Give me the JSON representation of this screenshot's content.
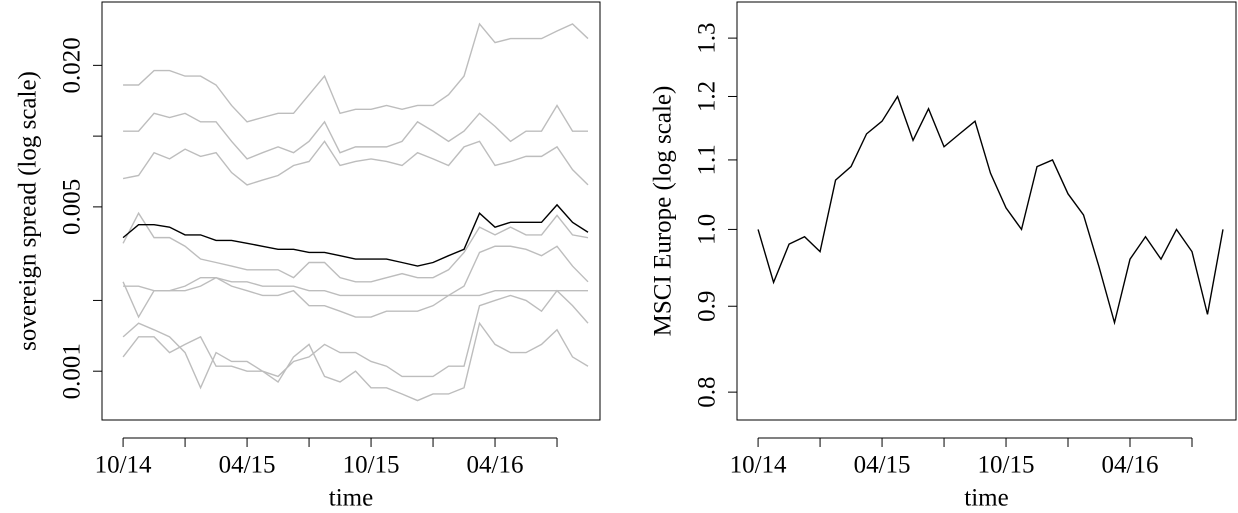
{
  "chart_data": [
    {
      "type": "line",
      "ylabel": "sovereign spread (log scale)",
      "xlabel": "time",
      "log_y": true,
      "x": [
        0,
        0.75,
        1.5,
        2.25,
        3,
        3.75,
        4.5,
        5.25,
        6,
        6.75,
        7.5,
        8.25,
        9,
        9.75,
        10.5,
        11.25,
        12,
        12.75,
        13.5,
        14.25,
        15,
        15.75,
        16.5,
        17.25,
        18,
        18.75,
        19.5,
        20.25,
        21,
        21.75,
        22.5
      ],
      "xlim": [
        -1.02,
        23.08
      ],
      "xticks": [
        {
          "value": 0,
          "label": "10/14"
        },
        {
          "value": 6,
          "label": "04/15"
        },
        {
          "value": 12,
          "label": "10/15"
        },
        {
          "value": 18,
          "label": "04/16"
        }
      ],
      "xminor": [
        3,
        9,
        15,
        21
      ],
      "ylim": [
        0.00062,
        0.0372
      ],
      "yticks": [
        0.001,
        0.005,
        {
          "value": 0.02,
          "label": "0.020"
        }
      ],
      "yminor": [
        0.002,
        0.01
      ],
      "series": [
        {
          "color": "#bdbdbd",
          "values": [
            0.0165,
            0.0165,
            0.019,
            0.019,
            0.018,
            0.018,
            0.0165,
            0.0135,
            0.0115,
            0.012,
            0.0125,
            0.0125,
            0.015,
            0.018,
            0.0125,
            0.013,
            0.013,
            0.0135,
            0.013,
            0.0135,
            0.0135,
            0.015,
            0.018,
            0.03,
            0.025,
            0.026,
            0.026,
            0.026,
            0.028,
            0.03,
            0.026
          ]
        },
        {
          "color": "#bdbdbd",
          "values": [
            0.0105,
            0.0105,
            0.0125,
            0.012,
            0.0125,
            0.0115,
            0.0115,
            0.0095,
            0.008,
            0.0085,
            0.009,
            0.0085,
            0.0095,
            0.0115,
            0.0085,
            0.009,
            0.009,
            0.009,
            0.0095,
            0.0115,
            0.0105,
            0.0095,
            0.0105,
            0.0125,
            0.011,
            0.0095,
            0.0105,
            0.0105,
            0.0135,
            0.0105,
            0.0105
          ]
        },
        {
          "color": "#bdbdbd",
          "values": [
            0.0066,
            0.0068,
            0.0085,
            0.008,
            0.0088,
            0.0082,
            0.0085,
            0.007,
            0.0062,
            0.0065,
            0.0068,
            0.0075,
            0.0078,
            0.0095,
            0.0075,
            0.0078,
            0.008,
            0.0078,
            0.0075,
            0.0085,
            0.008,
            0.0075,
            0.009,
            0.0095,
            0.0075,
            0.0078,
            0.0082,
            0.0082,
            0.009,
            0.0072,
            0.0062
          ]
        },
        {
          "color": "#bdbdbd",
          "values": [
            0.0035,
            0.0047,
            0.0037,
            0.0037,
            0.0034,
            0.003,
            0.0029,
            0.0028,
            0.0027,
            0.0027,
            0.0027,
            0.0025,
            0.0029,
            0.0029,
            0.0025,
            0.0024,
            0.0024,
            0.0025,
            0.0026,
            0.0025,
            0.0025,
            0.0027,
            0.0032,
            0.0041,
            0.0038,
            0.0041,
            0.0038,
            0.0038,
            0.0046,
            0.0038,
            0.0037
          ]
        },
        {
          "color": "#bdbdbd",
          "values": [
            0.0024,
            0.0017,
            0.0022,
            0.0022,
            0.0022,
            0.0023,
            0.0025,
            0.0023,
            0.0022,
            0.0021,
            0.0021,
            0.0022,
            0.0019,
            0.0019,
            0.0018,
            0.0017,
            0.0017,
            0.0018,
            0.0018,
            0.0018,
            0.0019,
            0.0021,
            0.0023,
            0.0032,
            0.0034,
            0.0034,
            0.0033,
            0.0031,
            0.0034,
            0.0028,
            0.0024
          ]
        },
        {
          "color": "#bdbdbd",
          "values": [
            0.0023,
            0.0023,
            0.0022,
            0.0022,
            0.0023,
            0.0025,
            0.0025,
            0.0024,
            0.0024,
            0.0023,
            0.0023,
            0.0023,
            0.0022,
            0.0022,
            0.0021,
            0.0021,
            0.0021,
            0.0021,
            0.0021,
            0.0021,
            0.0021,
            0.0021,
            0.0021,
            0.0021,
            0.0022,
            0.0022,
            0.0022,
            0.0022,
            0.0022,
            0.0022,
            0.0022
          ]
        },
        {
          "color": "#bdbdbd",
          "values": [
            0.0014,
            0.0016,
            0.0015,
            0.0014,
            0.0012,
            0.00085,
            0.0012,
            0.0011,
            0.0011,
            0.001,
            0.00095,
            0.0011,
            0.00115,
            0.0013,
            0.0012,
            0.0012,
            0.0011,
            0.00105,
            0.00095,
            0.00095,
            0.00095,
            0.00105,
            0.00105,
            0.0019,
            0.002,
            0.0021,
            0.002,
            0.0018,
            0.0022,
            0.0019,
            0.0016
          ]
        },
        {
          "color": "#bdbdbd",
          "values": [
            0.00115,
            0.0014,
            0.0014,
            0.0012,
            0.0013,
            0.0014,
            0.00105,
            0.00105,
            0.001,
            0.001,
            0.0009,
            0.00115,
            0.0013,
            0.00095,
            0.0009,
            0.001,
            0.00085,
            0.00085,
            0.0008,
            0.00075,
            0.0008,
            0.0008,
            0.00085,
            0.0016,
            0.0013,
            0.0012,
            0.0012,
            0.0013,
            0.0015,
            0.00115,
            0.00105
          ]
        },
        {
          "color": "#000000",
          "values": [
            0.0037,
            0.0042,
            0.0042,
            0.0041,
            0.0038,
            0.0038,
            0.0036,
            0.0036,
            0.0035,
            0.0034,
            0.0033,
            0.0033,
            0.0032,
            0.0032,
            0.0031,
            0.003,
            0.003,
            0.003,
            0.0029,
            0.0028,
            0.0029,
            0.0031,
            0.0033,
            0.0047,
            0.0041,
            0.0043,
            0.0043,
            0.0043,
            0.0051,
            0.0043,
            0.0039
          ]
        }
      ]
    },
    {
      "type": "line",
      "ylabel": "MSCI Europe (log scale)",
      "xlabel": "time",
      "log_y": true,
      "x": [
        0,
        0.75,
        1.5,
        2.25,
        3,
        3.75,
        4.5,
        5.25,
        6,
        6.75,
        7.5,
        8.25,
        9,
        9.75,
        10.5,
        11.25,
        12,
        12.75,
        13.5,
        14.25,
        15,
        15.75,
        16.5,
        17.25,
        18,
        18.75,
        19.5,
        20.25,
        21,
        21.75,
        22.5
      ],
      "xlim": [
        -1.02,
        23.13
      ],
      "xticks": [
        {
          "value": 0,
          "label": "10/14"
        },
        {
          "value": 6,
          "label": "04/15"
        },
        {
          "value": 12,
          "label": "10/15"
        },
        {
          "value": 18,
          "label": "04/16"
        }
      ],
      "xminor": [
        3,
        9,
        15,
        21
      ],
      "ylim": [
        0.77,
        1.366
      ],
      "yticks": [
        0.8,
        0.9,
        {
          "value": 1,
          "label": "1.0"
        },
        1.1,
        1.2,
        1.3
      ],
      "series": [
        {
          "color": "#000000",
          "values": [
            1.0,
            0.93,
            0.98,
            0.99,
            0.97,
            1.07,
            1.09,
            1.14,
            1.16,
            1.2,
            1.13,
            1.18,
            1.12,
            1.14,
            1.16,
            1.08,
            1.03,
            1.0,
            1.09,
            1.1,
            1.05,
            1.02,
            0.95,
            0.88,
            0.96,
            0.99,
            0.96,
            1.0,
            0.97,
            0.89,
            1.0
          ]
        }
      ]
    }
  ]
}
